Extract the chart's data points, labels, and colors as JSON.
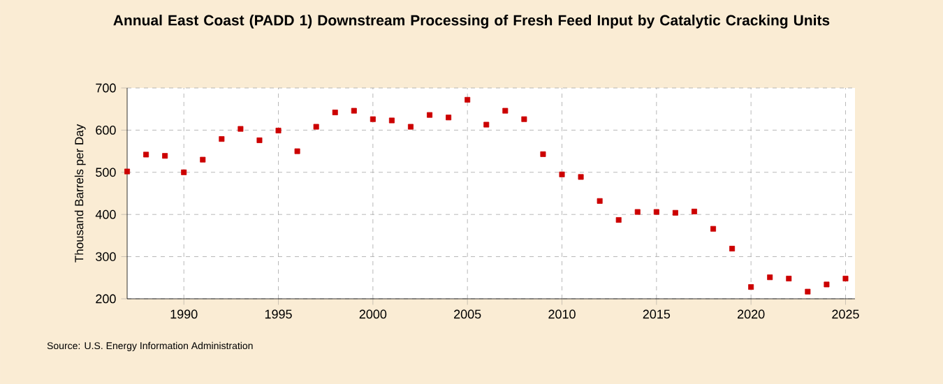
{
  "chart_data": {
    "type": "scatter",
    "title": "Annual East Coast (PADD 1) Downstream Processing of Fresh Feed Input by Catalytic Cracking Units",
    "ylabel": "Thousand Barrels per Day",
    "annotations": [
      "Source: U.S. Energy Information Administration"
    ],
    "x": [
      1987,
      1988,
      1989,
      1990,
      1991,
      1992,
      1993,
      1994,
      1995,
      1996,
      1997,
      1998,
      1999,
      2000,
      2001,
      2002,
      2003,
      2004,
      2005,
      2006,
      2007,
      2008,
      2009,
      2010,
      2011,
      2012,
      2013,
      2014,
      2015,
      2016,
      2017,
      2018,
      2019,
      2020,
      2021,
      2022,
      2023,
      2024,
      2025
    ],
    "series": [
      {
        "color": "#cc0000",
        "values": [
          502,
          542,
          539,
          500,
          530,
          579,
          603,
          576,
          599,
          550,
          608,
          642,
          646,
          626,
          623,
          608,
          636,
          630,
          672,
          613,
          646,
          626,
          543,
          495,
          489,
          432,
          387,
          406,
          406,
          404,
          407,
          366,
          319,
          228,
          251,
          248,
          217,
          234,
          248
        ]
      }
    ],
    "xlim": [
      1987,
      2025.5
    ],
    "ylim": [
      200,
      700
    ],
    "xticks": [
      1990,
      1995,
      2000,
      2005,
      2010,
      2015,
      2020,
      2025
    ],
    "yticks": [
      200,
      300,
      400,
      500,
      600,
      700
    ],
    "grid": true,
    "marker": "square"
  }
}
